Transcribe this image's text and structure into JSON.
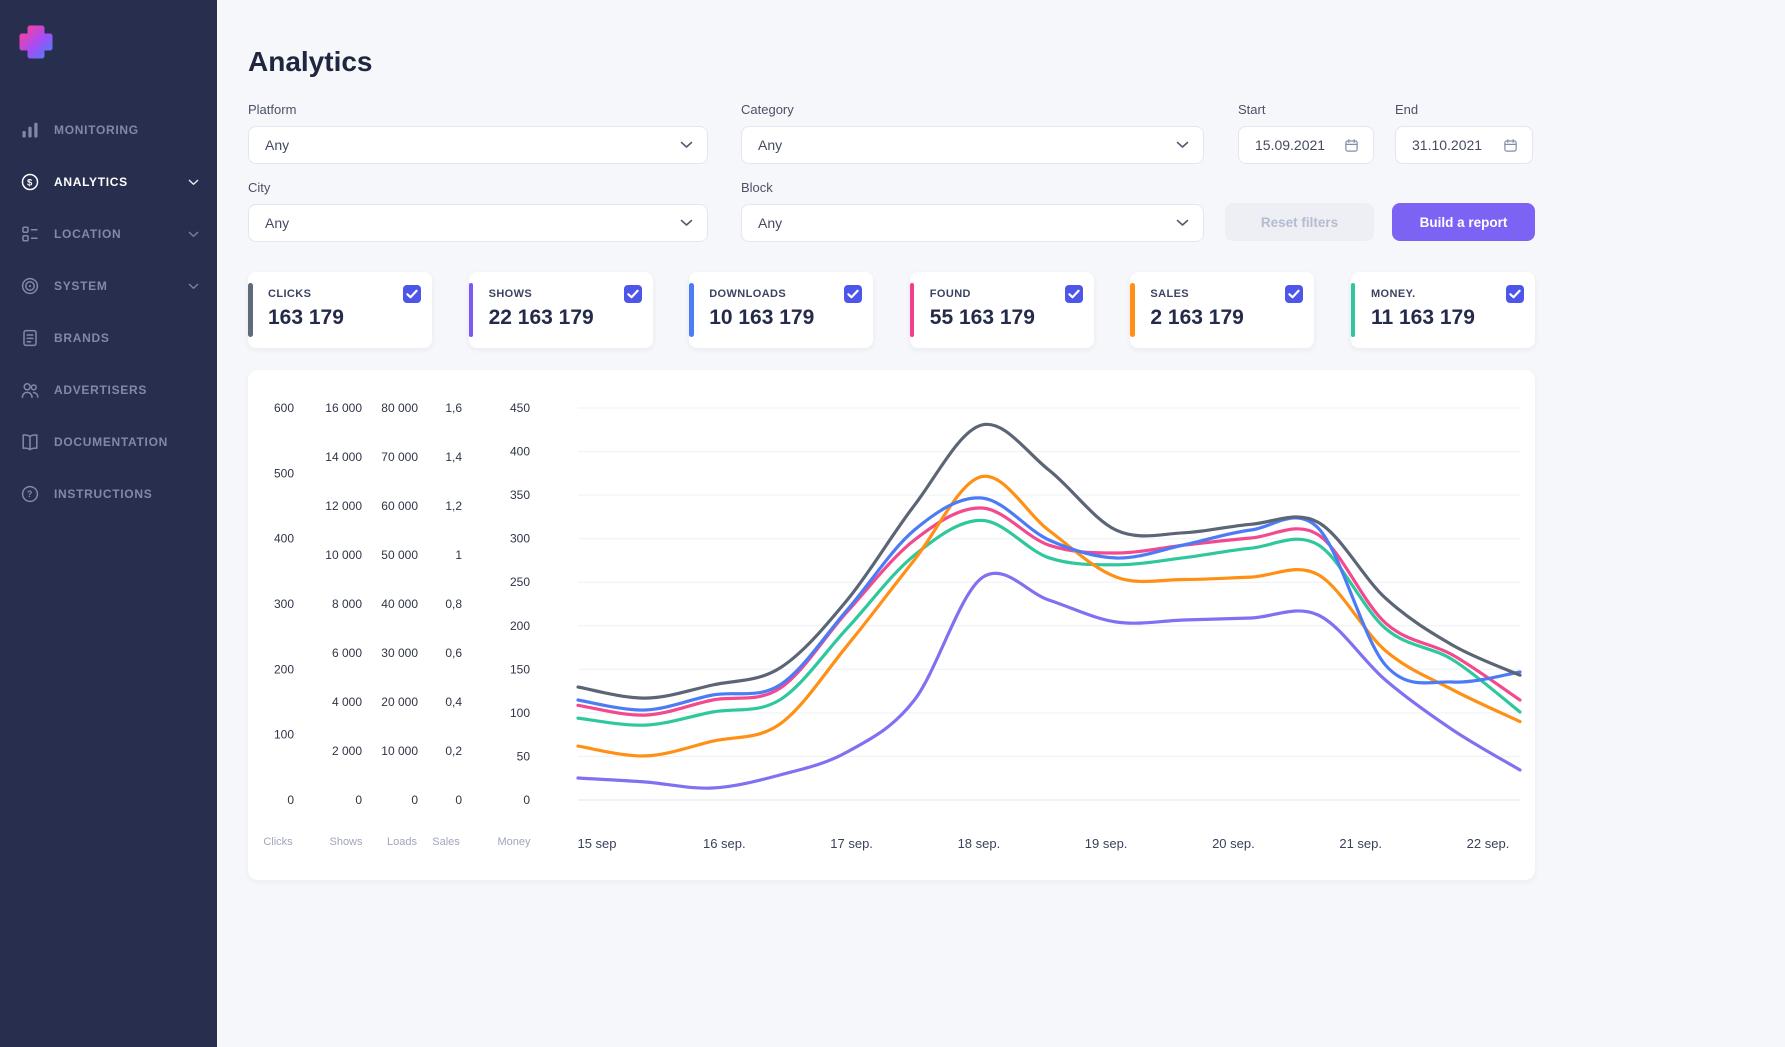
{
  "app": {
    "title": "Analytics"
  },
  "sidebar": {
    "items": [
      {
        "label": "MONITORING",
        "icon": "bar-chart",
        "active": false,
        "chevron": false
      },
      {
        "label": "ANALYTICS",
        "icon": "dollar-circle",
        "active": true,
        "chevron": true
      },
      {
        "label": "LOCATION",
        "icon": "layout-list",
        "active": false,
        "chevron": true
      },
      {
        "label": "SYSTEM",
        "icon": "target",
        "active": false,
        "chevron": true
      },
      {
        "label": "BRANDS",
        "icon": "document",
        "active": false,
        "chevron": false
      },
      {
        "label": "ADVERTISERS",
        "icon": "users",
        "active": false,
        "chevron": false
      },
      {
        "label": "DOCUMENTATION",
        "icon": "book",
        "active": false,
        "chevron": false
      },
      {
        "label": "INSTRUCTIONS",
        "icon": "help-circle",
        "active": false,
        "chevron": false
      }
    ]
  },
  "filters": {
    "platform": {
      "label": "Platform",
      "value": "Any"
    },
    "category": {
      "label": "Category",
      "value": "Any"
    },
    "city": {
      "label": "City",
      "value": "Any"
    },
    "block": {
      "label": "Block",
      "value": "Any"
    },
    "start": {
      "label": "Start",
      "value": "15.09.2021"
    },
    "end": {
      "label": "End",
      "value": "31.10.2021"
    },
    "reset_label": "Reset filters",
    "build_label": "Build a report"
  },
  "colors": {
    "accent_button": "#7d63f4",
    "checkbox": "#4d56e8"
  },
  "stats": [
    {
      "label": "CLICKS",
      "value": "163 179",
      "color": "#5f6b7a",
      "checked": true
    },
    {
      "label": "SHOWS",
      "value": "22 163 179",
      "color": "#7e57f7",
      "checked": true
    },
    {
      "label": "DOWNLOADS",
      "value": "10 163 179",
      "color": "#4c7cf5",
      "checked": true
    },
    {
      "label": "FOUND",
      "value": "55 163 179",
      "color": "#f23e8c",
      "checked": true
    },
    {
      "label": "SALES",
      "value": "2 163 179",
      "color": "#ff9015",
      "checked": true
    },
    {
      "label": "MONEY.",
      "value": "11 163 179",
      "color": "#2fc79c",
      "checked": true
    }
  ],
  "chart_data": {
    "type": "line",
    "title": "",
    "grid": "horizontal",
    "x_labels": [
      "15 sep",
      "16 sep.",
      "17 sep.",
      "18 sep.",
      "19 sep.",
      "20 sep.",
      "21 sep.",
      "22 sep."
    ],
    "x_note": "series sampled at half-day steps from 15 sep to 22 sep (15 points per series)",
    "axes": [
      {
        "name": "Clicks",
        "ylim": [
          0,
          600
        ],
        "ticks": [
          "0",
          "100",
          "200",
          "300",
          "400",
          "500",
          "600"
        ]
      },
      {
        "name": "Shows",
        "ylim": [
          0,
          16000
        ],
        "ticks": [
          "0",
          "2 000",
          "4 000",
          "6 000",
          "8 000",
          "10 000",
          "12 000",
          "14 000",
          "16 000"
        ]
      },
      {
        "name": "Loads",
        "ylim": [
          0,
          80000
        ],
        "ticks": [
          "0",
          "10 000",
          "20 000",
          "30 000",
          "40 000",
          "50 000",
          "60 000",
          "70 000",
          "80 000"
        ]
      },
      {
        "name": "Sales",
        "ylim": [
          0,
          1.6
        ],
        "ticks": [
          "0",
          "0,2",
          "0,4",
          "0,6",
          "0,8",
          "1",
          "1,2",
          "1,4",
          "1,6"
        ]
      },
      {
        "name": "Money",
        "ylim": [
          0,
          450
        ],
        "ticks": [
          "0",
          "50",
          "100",
          "150",
          "200",
          "250",
          "300",
          "350",
          "400",
          "450"
        ]
      }
    ],
    "series": [
      {
        "name": "Clicks",
        "axis": "Clicks",
        "max": 600,
        "color": "#5b6575",
        "values": [
          173,
          156,
          176,
          202,
          306,
          451,
          574,
          505,
          413,
          409,
          422,
          425,
          309,
          237,
          191
        ]
      },
      {
        "name": "Shows",
        "axis": "Shows",
        "max": 16000,
        "color": "#8070f2",
        "values": [
          900,
          735,
          490,
          1020,
          1960,
          4080,
          9060,
          8160,
          7265,
          7345,
          7430,
          7550,
          4900,
          2860,
          1225
        ]
      },
      {
        "name": "Loads",
        "axis": "Loads",
        "max": 80000,
        "color": "#4c7cf5",
        "values": [
          20410,
          18370,
          21430,
          23470,
          38780,
          55100,
          61630,
          53060,
          49390,
          52040,
          55100,
          55510,
          27550,
          24080,
          26120
        ]
      },
      {
        "name": "Found",
        "axis": "Clicks",
        "max": 600,
        "color": "#f2498f",
        "values": [
          145,
          130,
          153,
          171,
          288,
          398,
          447,
          390,
          378,
          390,
          401,
          406,
          271,
          222,
          153
        ]
      },
      {
        "name": "Sales",
        "axis": "Sales",
        "max": 1.6,
        "color": "#ff9015",
        "values": [
          0.22,
          0.18,
          0.24,
          0.31,
          0.63,
          0.98,
          1.32,
          1.1,
          0.91,
          0.9,
          0.91,
          0.92,
          0.61,
          0.45,
          0.32
        ]
      },
      {
        "name": "Money",
        "axis": "Money",
        "max": 450,
        "color": "#2fc79c",
        "values": [
          94,
          86,
          101,
          115,
          197,
          281,
          321,
          278,
          270,
          278,
          289,
          293,
          197,
          161,
          101
        ]
      }
    ],
    "z_order": [
      "Shows",
      "Money",
      "Found",
      "Sales",
      "Loads",
      "Clicks"
    ]
  }
}
